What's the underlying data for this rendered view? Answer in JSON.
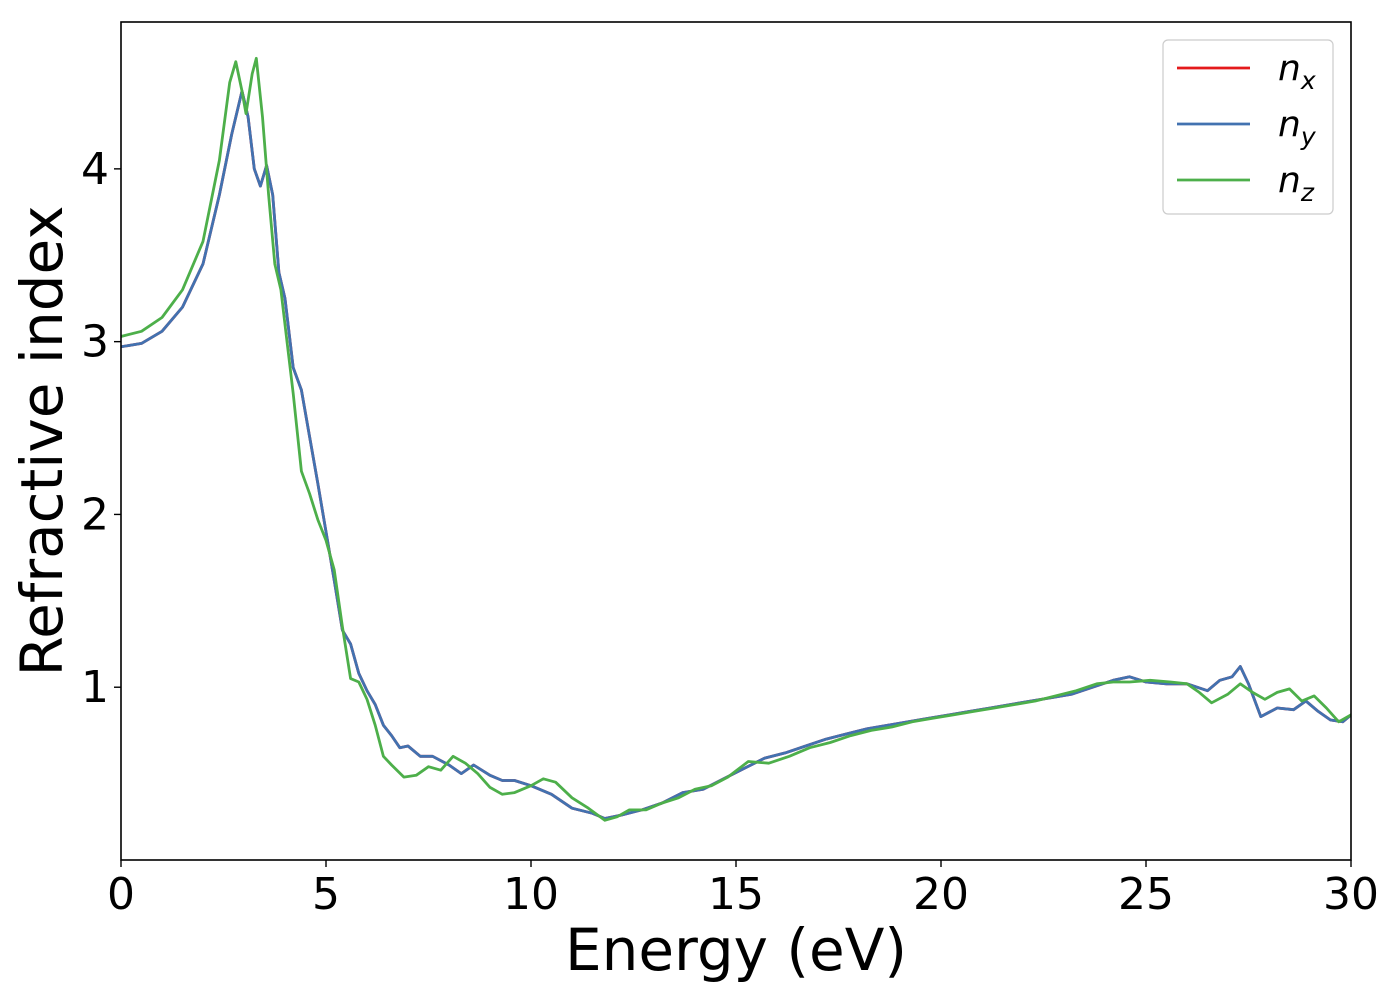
{
  "chart_data": {
    "type": "line",
    "title": "",
    "xlabel": "Energy (eV)",
    "ylabel": "Refractive index",
    "xlim": [
      0,
      30
    ],
    "ylim": [
      0.0,
      4.85
    ],
    "xticks": [
      0,
      5,
      10,
      15,
      20,
      25,
      30
    ],
    "yticks": [
      1,
      2,
      3,
      4
    ],
    "grid": false,
    "legend": {
      "position": "top-right"
    },
    "series": [
      {
        "name": "n",
        "subscript": "x",
        "color": "#e41a1c",
        "points": [
          [
            0,
            2.97
          ],
          [
            0.5,
            2.99
          ],
          [
            1.0,
            3.06
          ],
          [
            1.5,
            3.2
          ],
          [
            2.0,
            3.45
          ],
          [
            2.4,
            3.85
          ],
          [
            2.7,
            4.2
          ],
          [
            2.95,
            4.45
          ],
          [
            3.1,
            4.3
          ],
          [
            3.25,
            4.0
          ],
          [
            3.4,
            3.9
          ],
          [
            3.55,
            4.02
          ],
          [
            3.7,
            3.85
          ],
          [
            3.85,
            3.4
          ],
          [
            4.0,
            3.25
          ],
          [
            4.2,
            2.85
          ],
          [
            4.4,
            2.72
          ],
          [
            4.6,
            2.45
          ],
          [
            4.8,
            2.18
          ],
          [
            5.0,
            1.9
          ],
          [
            5.2,
            1.62
          ],
          [
            5.4,
            1.33
          ],
          [
            5.6,
            1.25
          ],
          [
            5.8,
            1.08
          ],
          [
            6.0,
            0.98
          ],
          [
            6.2,
            0.9
          ],
          [
            6.4,
            0.78
          ],
          [
            6.6,
            0.72
          ],
          [
            6.8,
            0.65
          ],
          [
            7.0,
            0.66
          ],
          [
            7.3,
            0.6
          ],
          [
            7.6,
            0.6
          ],
          [
            8.0,
            0.55
          ],
          [
            8.3,
            0.5
          ],
          [
            8.6,
            0.55
          ],
          [
            9.0,
            0.49
          ],
          [
            9.3,
            0.46
          ],
          [
            9.6,
            0.46
          ],
          [
            10.0,
            0.43
          ],
          [
            10.5,
            0.38
          ],
          [
            11.0,
            0.3
          ],
          [
            11.5,
            0.27
          ],
          [
            11.8,
            0.24
          ],
          [
            12.2,
            0.26
          ],
          [
            12.7,
            0.29
          ],
          [
            13.2,
            0.33
          ],
          [
            13.7,
            0.39
          ],
          [
            14.2,
            0.41
          ],
          [
            14.7,
            0.47
          ],
          [
            15.2,
            0.53
          ],
          [
            15.7,
            0.59
          ],
          [
            16.2,
            0.62
          ],
          [
            16.7,
            0.66
          ],
          [
            17.2,
            0.7
          ],
          [
            17.7,
            0.73
          ],
          [
            18.2,
            0.76
          ],
          [
            18.7,
            0.78
          ],
          [
            19.2,
            0.8
          ],
          [
            19.7,
            0.82
          ],
          [
            20.2,
            0.84
          ],
          [
            20.7,
            0.86
          ],
          [
            21.2,
            0.88
          ],
          [
            21.7,
            0.9
          ],
          [
            22.2,
            0.92
          ],
          [
            22.7,
            0.94
          ],
          [
            23.2,
            0.96
          ],
          [
            23.7,
            1.0
          ],
          [
            24.2,
            1.04
          ],
          [
            24.6,
            1.06
          ],
          [
            25.0,
            1.03
          ],
          [
            25.5,
            1.02
          ],
          [
            26.0,
            1.02
          ],
          [
            26.5,
            0.98
          ],
          [
            26.8,
            1.04
          ],
          [
            27.1,
            1.06
          ],
          [
            27.3,
            1.12
          ],
          [
            27.5,
            1.02
          ],
          [
            27.8,
            0.83
          ],
          [
            28.2,
            0.88
          ],
          [
            28.6,
            0.87
          ],
          [
            28.9,
            0.92
          ],
          [
            29.2,
            0.86
          ],
          [
            29.5,
            0.81
          ],
          [
            29.8,
            0.8
          ],
          [
            30.0,
            0.84
          ]
        ]
      },
      {
        "name": "n",
        "subscript": "y",
        "color": "#4272b0",
        "points": [
          [
            0,
            2.97
          ],
          [
            0.5,
            2.99
          ],
          [
            1.0,
            3.06
          ],
          [
            1.5,
            3.2
          ],
          [
            2.0,
            3.45
          ],
          [
            2.4,
            3.85
          ],
          [
            2.7,
            4.2
          ],
          [
            2.95,
            4.45
          ],
          [
            3.1,
            4.3
          ],
          [
            3.25,
            4.0
          ],
          [
            3.4,
            3.9
          ],
          [
            3.55,
            4.02
          ],
          [
            3.7,
            3.85
          ],
          [
            3.85,
            3.4
          ],
          [
            4.0,
            3.25
          ],
          [
            4.2,
            2.85
          ],
          [
            4.4,
            2.72
          ],
          [
            4.6,
            2.45
          ],
          [
            4.8,
            2.18
          ],
          [
            5.0,
            1.9
          ],
          [
            5.2,
            1.62
          ],
          [
            5.4,
            1.33
          ],
          [
            5.6,
            1.25
          ],
          [
            5.8,
            1.08
          ],
          [
            6.0,
            0.98
          ],
          [
            6.2,
            0.9
          ],
          [
            6.4,
            0.78
          ],
          [
            6.6,
            0.72
          ],
          [
            6.8,
            0.65
          ],
          [
            7.0,
            0.66
          ],
          [
            7.3,
            0.6
          ],
          [
            7.6,
            0.6
          ],
          [
            8.0,
            0.55
          ],
          [
            8.3,
            0.5
          ],
          [
            8.6,
            0.55
          ],
          [
            9.0,
            0.49
          ],
          [
            9.3,
            0.46
          ],
          [
            9.6,
            0.46
          ],
          [
            10.0,
            0.43
          ],
          [
            10.5,
            0.38
          ],
          [
            11.0,
            0.3
          ],
          [
            11.5,
            0.27
          ],
          [
            11.8,
            0.24
          ],
          [
            12.2,
            0.26
          ],
          [
            12.7,
            0.29
          ],
          [
            13.2,
            0.33
          ],
          [
            13.7,
            0.39
          ],
          [
            14.2,
            0.41
          ],
          [
            14.7,
            0.47
          ],
          [
            15.2,
            0.53
          ],
          [
            15.7,
            0.59
          ],
          [
            16.2,
            0.62
          ],
          [
            16.7,
            0.66
          ],
          [
            17.2,
            0.7
          ],
          [
            17.7,
            0.73
          ],
          [
            18.2,
            0.76
          ],
          [
            18.7,
            0.78
          ],
          [
            19.2,
            0.8
          ],
          [
            19.7,
            0.82
          ],
          [
            20.2,
            0.84
          ],
          [
            20.7,
            0.86
          ],
          [
            21.2,
            0.88
          ],
          [
            21.7,
            0.9
          ],
          [
            22.2,
            0.92
          ],
          [
            22.7,
            0.94
          ],
          [
            23.2,
            0.96
          ],
          [
            23.7,
            1.0
          ],
          [
            24.2,
            1.04
          ],
          [
            24.6,
            1.06
          ],
          [
            25.0,
            1.03
          ],
          [
            25.5,
            1.02
          ],
          [
            26.0,
            1.02
          ],
          [
            26.5,
            0.98
          ],
          [
            26.8,
            1.04
          ],
          [
            27.1,
            1.06
          ],
          [
            27.3,
            1.12
          ],
          [
            27.5,
            1.02
          ],
          [
            27.8,
            0.83
          ],
          [
            28.2,
            0.88
          ],
          [
            28.6,
            0.87
          ],
          [
            28.9,
            0.92
          ],
          [
            29.2,
            0.86
          ],
          [
            29.5,
            0.81
          ],
          [
            29.8,
            0.8
          ],
          [
            30.0,
            0.84
          ]
        ]
      },
      {
        "name": "n",
        "subscript": "z",
        "color": "#4daf4a",
        "points": [
          [
            0,
            3.03
          ],
          [
            0.5,
            3.06
          ],
          [
            1.0,
            3.14
          ],
          [
            1.5,
            3.3
          ],
          [
            2.0,
            3.58
          ],
          [
            2.4,
            4.05
          ],
          [
            2.65,
            4.5
          ],
          [
            2.8,
            4.62
          ],
          [
            2.95,
            4.45
          ],
          [
            3.05,
            4.32
          ],
          [
            3.2,
            4.55
          ],
          [
            3.3,
            4.64
          ],
          [
            3.45,
            4.3
          ],
          [
            3.6,
            3.85
          ],
          [
            3.75,
            3.45
          ],
          [
            3.9,
            3.3
          ],
          [
            4.05,
            3.0
          ],
          [
            4.2,
            2.7
          ],
          [
            4.4,
            2.25
          ],
          [
            4.6,
            2.12
          ],
          [
            4.8,
            1.97
          ],
          [
            5.0,
            1.85
          ],
          [
            5.2,
            1.68
          ],
          [
            5.4,
            1.35
          ],
          [
            5.6,
            1.05
          ],
          [
            5.8,
            1.03
          ],
          [
            6.0,
            0.93
          ],
          [
            6.2,
            0.78
          ],
          [
            6.4,
            0.6
          ],
          [
            6.6,
            0.55
          ],
          [
            6.9,
            0.48
          ],
          [
            7.2,
            0.49
          ],
          [
            7.5,
            0.54
          ],
          [
            7.8,
            0.52
          ],
          [
            8.1,
            0.6
          ],
          [
            8.4,
            0.56
          ],
          [
            8.7,
            0.5
          ],
          [
            9.0,
            0.42
          ],
          [
            9.3,
            0.38
          ],
          [
            9.6,
            0.39
          ],
          [
            10.0,
            0.43
          ],
          [
            10.3,
            0.47
          ],
          [
            10.6,
            0.45
          ],
          [
            11.0,
            0.36
          ],
          [
            11.4,
            0.3
          ],
          [
            11.8,
            0.23
          ],
          [
            12.1,
            0.25
          ],
          [
            12.4,
            0.29
          ],
          [
            12.8,
            0.29
          ],
          [
            13.2,
            0.33
          ],
          [
            13.6,
            0.36
          ],
          [
            14.0,
            0.41
          ],
          [
            14.4,
            0.43
          ],
          [
            14.8,
            0.48
          ],
          [
            15.3,
            0.57
          ],
          [
            15.8,
            0.56
          ],
          [
            16.3,
            0.6
          ],
          [
            16.8,
            0.65
          ],
          [
            17.3,
            0.68
          ],
          [
            17.8,
            0.72
          ],
          [
            18.3,
            0.75
          ],
          [
            18.8,
            0.77
          ],
          [
            19.3,
            0.8
          ],
          [
            19.8,
            0.82
          ],
          [
            20.3,
            0.84
          ],
          [
            20.8,
            0.86
          ],
          [
            21.3,
            0.88
          ],
          [
            21.8,
            0.9
          ],
          [
            22.3,
            0.92
          ],
          [
            22.8,
            0.95
          ],
          [
            23.3,
            0.98
          ],
          [
            23.8,
            1.02
          ],
          [
            24.2,
            1.03
          ],
          [
            24.6,
            1.03
          ],
          [
            25.1,
            1.04
          ],
          [
            25.6,
            1.03
          ],
          [
            26.0,
            1.02
          ],
          [
            26.3,
            0.97
          ],
          [
            26.6,
            0.91
          ],
          [
            27.0,
            0.96
          ],
          [
            27.3,
            1.02
          ],
          [
            27.6,
            0.97
          ],
          [
            27.9,
            0.93
          ],
          [
            28.2,
            0.97
          ],
          [
            28.5,
            0.99
          ],
          [
            28.8,
            0.92
          ],
          [
            29.1,
            0.95
          ],
          [
            29.4,
            0.88
          ],
          [
            29.7,
            0.8
          ],
          [
            30.0,
            0.84
          ]
        ]
      }
    ]
  }
}
